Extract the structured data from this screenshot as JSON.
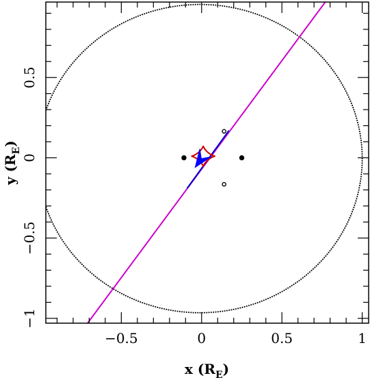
{
  "chart_data": {
    "type": "scatter",
    "xlabel": {
      "text": "x (R",
      "sub": "E",
      "close": ")"
    },
    "ylabel": {
      "text": "y (R",
      "sub": "E",
      "close": ")"
    },
    "xlim": [
      -0.97,
      1.04
    ],
    "ylim": [
      -1.03,
      0.97
    ],
    "x_ticks": [
      {
        "value": -0.5,
        "label": "−0.5"
      },
      {
        "value": 0,
        "label": "0"
      },
      {
        "value": 0.5,
        "label": "0.5"
      },
      {
        "value": 1,
        "label": "1"
      }
    ],
    "y_ticks": [
      {
        "value": -1,
        "label": "−1"
      },
      {
        "value": -0.5,
        "label": "−0.5"
      },
      {
        "value": 0,
        "label": "0"
      },
      {
        "value": 0.5,
        "label": "0.5"
      }
    ],
    "minor_step": 0.1,
    "grid": false,
    "einstein_ring": {
      "cx": -0.01,
      "cy": -0.005,
      "rx": 1.01,
      "ry": 0.96,
      "color": "#000000",
      "style": "dotted"
    },
    "source_trajectory": {
      "color": "#cc00cc",
      "p1": [
        -0.71,
        -1.03
      ],
      "p2": [
        0.77,
        0.97
      ]
    },
    "trajectory_segment": {
      "color": "#0000cc",
      "p1": [
        -0.09,
        -0.19
      ],
      "p2": [
        0.17,
        0.17
      ]
    },
    "source_arrow": {
      "color": "#0000ff",
      "tip": [
        -0.04,
        -0.06
      ],
      "from": [
        0.03,
        0.04
      ]
    },
    "caustic": {
      "color": "#cc0000",
      "center": [
        0.01,
        0.01
      ],
      "rx": 0.075,
      "ry": 0.065
    },
    "lens_positions": [
      {
        "x": -0.11,
        "y": 0.0,
        "filled": true
      },
      {
        "x": 0.25,
        "y": 0.0,
        "filled": true
      },
      {
        "x": 0.14,
        "y": 0.165,
        "filled": false
      },
      {
        "x": 0.14,
        "y": -0.165,
        "filled": false
      }
    ]
  }
}
